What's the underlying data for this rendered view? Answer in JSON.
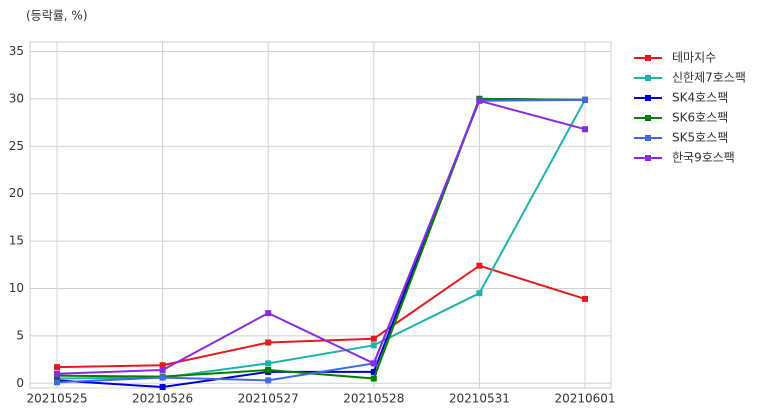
{
  "chart_data": {
    "type": "line",
    "y_label": "(등락률, %)",
    "categories": [
      "20210525",
      "20210526",
      "20210527",
      "20210528",
      "20210531",
      "20210601"
    ],
    "series": [
      {
        "name": "테마지수",
        "color": "#e41a1c",
        "values": [
          1.7,
          1.9,
          4.3,
          4.7,
          12.4,
          8.9
        ]
      },
      {
        "name": "신한제7호스팩",
        "color": "#20b2aa",
        "values": [
          0.5,
          0.6,
          2.1,
          4.0,
          9.5,
          29.9
        ]
      },
      {
        "name": "SK4호스팩",
        "color": "#0000cd",
        "values": [
          0.3,
          -0.4,
          1.2,
          1.2,
          30.0,
          29.9
        ]
      },
      {
        "name": "SK6호스팩",
        "color": "#008000",
        "values": [
          0.8,
          0.7,
          1.4,
          0.5,
          30.0,
          29.9
        ]
      },
      {
        "name": "SK5호스팩",
        "color": "#4169e1",
        "values": [
          0.1,
          0.6,
          0.3,
          2.1,
          29.8,
          29.9
        ]
      },
      {
        "name": "한국9호스팩",
        "color": "#8a2be2",
        "values": [
          1.0,
          1.4,
          7.4,
          2.1,
          29.8,
          26.8
        ]
      }
    ],
    "ylim": [
      -0.5,
      36
    ],
    "yticks": [
      0,
      5,
      10,
      15,
      20,
      25,
      30,
      35
    ],
    "grid": true,
    "legend": "outside-right"
  }
}
